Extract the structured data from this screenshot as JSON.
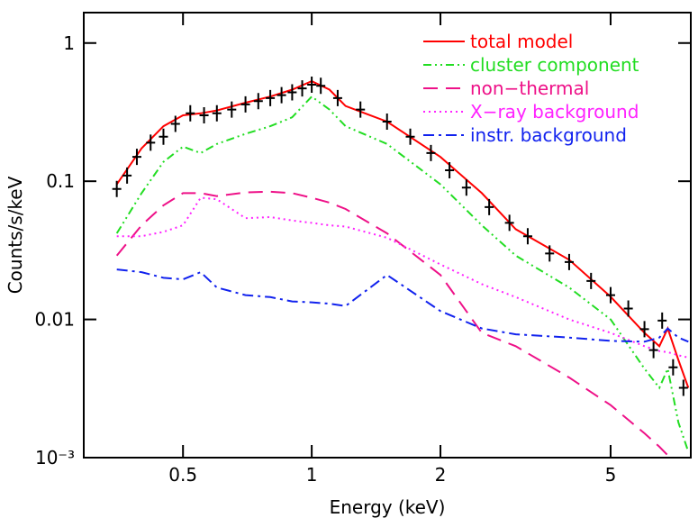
{
  "chart_data": {
    "type": "line",
    "xlabel": "Energy (keV)",
    "ylabel": "Counts/s/keV",
    "xscale": "log",
    "yscale": "log",
    "xlim": [
      0.293,
      7.7
    ],
    "ylim": [
      0.001,
      1.66
    ],
    "xticks": [
      0.5,
      1,
      2,
      5
    ],
    "yticks": [
      {
        "value": 0.001,
        "label": "10⁻³"
      },
      0.01,
      0.1,
      1
    ],
    "legend": "upper right",
    "x": [
      0.35,
      0.4,
      0.45,
      0.5,
      0.55,
      0.6,
      0.7,
      0.8,
      0.9,
      1.0,
      1.1,
      1.2,
      1.5,
      2,
      2.5,
      3,
      4,
      5,
      6,
      6.5,
      6.8,
      7.2,
      7.6
    ],
    "series": [
      {
        "name": "total model",
        "color": "#ff0000",
        "dash": "solid",
        "values": [
          0.095,
          0.173,
          0.25,
          0.3,
          0.31,
          0.325,
          0.37,
          0.41,
          0.46,
          0.53,
          0.46,
          0.35,
          0.27,
          0.15,
          0.082,
          0.045,
          0.027,
          0.0146,
          0.008,
          0.0064,
          0.0086,
          0.0051,
          0.0032
        ]
      },
      {
        "name": "cluster component",
        "color": "#22dd22",
        "dash": "dash-dot-dot",
        "values": [
          0.042,
          0.082,
          0.138,
          0.178,
          0.16,
          0.186,
          0.22,
          0.25,
          0.29,
          0.41,
          0.33,
          0.25,
          0.186,
          0.095,
          0.048,
          0.029,
          0.017,
          0.01,
          0.0044,
          0.0032,
          0.0044,
          0.0018,
          0.0011
        ]
      },
      {
        "name": "non−thermal",
        "color": "#ee1188",
        "dash": "dashed",
        "values": [
          0.029,
          0.048,
          0.067,
          0.082,
          0.082,
          0.078,
          0.083,
          0.084,
          0.082,
          0.076,
          0.07,
          0.063,
          0.042,
          0.021,
          0.008,
          0.0064,
          0.0038,
          0.0024,
          0.0015,
          0.0012,
          0.00104,
          null,
          null
        ]
      },
      {
        "name": "X−ray background",
        "color": "#ff22ff",
        "dash": "dotted",
        "values": [
          0.04,
          0.04,
          0.043,
          0.048,
          0.076,
          0.074,
          0.054,
          0.055,
          0.052,
          0.05,
          0.048,
          0.047,
          0.039,
          0.025,
          0.018,
          0.0145,
          0.01,
          0.008,
          0.0064,
          0.0059,
          0.0058,
          0.0055,
          0.0053
        ]
      },
      {
        "name": "instr. background",
        "color": "#1122ee",
        "dash": "dash-dot",
        "values": [
          0.023,
          0.022,
          0.02,
          0.0195,
          0.022,
          0.017,
          0.015,
          0.0145,
          0.0135,
          0.0133,
          0.013,
          0.0125,
          0.021,
          0.0115,
          0.0086,
          0.0078,
          0.0074,
          0.007,
          0.0069,
          0.0074,
          0.0086,
          0.0074,
          0.0069
        ]
      }
    ],
    "points": {
      "color": "#000000",
      "x": [
        0.35,
        0.37,
        0.39,
        0.42,
        0.45,
        0.48,
        0.52,
        0.56,
        0.6,
        0.65,
        0.7,
        0.75,
        0.8,
        0.85,
        0.9,
        0.95,
        1.0,
        1.05,
        1.15,
        1.3,
        1.5,
        1.7,
        1.9,
        2.1,
        2.3,
        2.6,
        2.9,
        3.2,
        3.6,
        4,
        4.5,
        5,
        5.5,
        6,
        6.3,
        6.6,
        7.0,
        7.4
      ],
      "values": [
        0.088,
        0.11,
        0.15,
        0.19,
        0.21,
        0.26,
        0.31,
        0.3,
        0.31,
        0.33,
        0.36,
        0.38,
        0.4,
        0.42,
        0.44,
        0.47,
        0.5,
        0.49,
        0.4,
        0.33,
        0.27,
        0.21,
        0.16,
        0.12,
        0.09,
        0.065,
        0.05,
        0.04,
        0.03,
        0.026,
        0.019,
        0.015,
        0.012,
        0.0085,
        0.006,
        0.0098,
        0.0045,
        0.0032
      ]
    }
  }
}
